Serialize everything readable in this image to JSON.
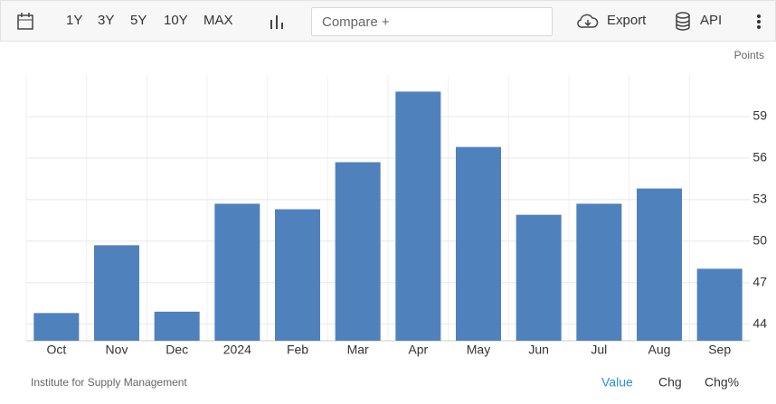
{
  "toolbar": {
    "ranges": [
      "1Y",
      "3Y",
      "5Y",
      "10Y",
      "MAX"
    ],
    "compare_placeholder": "Compare +",
    "export": "Export",
    "api": "API"
  },
  "chart_data": {
    "type": "bar",
    "y_axis_label": "Points",
    "categories": [
      "Oct",
      "Nov",
      "Dec",
      "2024",
      "Feb",
      "Mar",
      "Apr",
      "May",
      "Jun",
      "Jul",
      "Aug",
      "Sep"
    ],
    "values": [
      44.8,
      49.7,
      44.9,
      52.7,
      52.3,
      55.7,
      60.8,
      56.8,
      51.9,
      52.7,
      53.8,
      48.0
    ],
    "color": "#4f81bd",
    "ylim": [
      42.8,
      62
    ],
    "yticks": [
      44,
      47,
      50,
      53,
      56,
      59
    ],
    "grid": true
  },
  "footer": {
    "source": "Institute for Supply Management",
    "views": [
      "Value",
      "Chg",
      "Chg%"
    ]
  }
}
